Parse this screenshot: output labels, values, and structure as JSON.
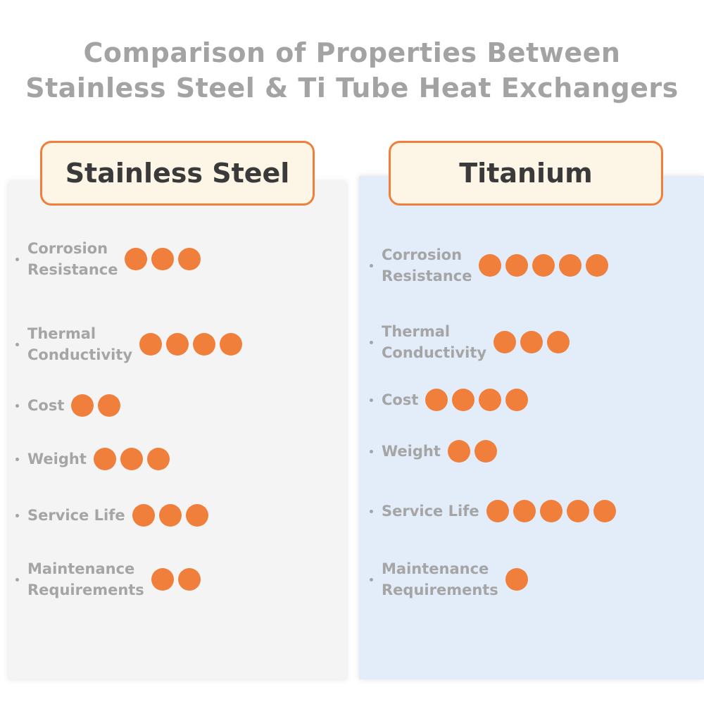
{
  "title": [
    "Comparison of Properties Between",
    "Stainless Steel & Ti Tube Heat Exchangers"
  ],
  "columns": [
    {
      "name": "Stainless Steel",
      "properties": [
        {
          "label": [
            "Corrosion",
            "Resistance"
          ],
          "rating": 3
        },
        {
          "label": [
            "Thermal",
            "Conductivity"
          ],
          "rating": 4
        },
        {
          "label": [
            "Cost"
          ],
          "rating": 2
        },
        {
          "label": [
            "Weight"
          ],
          "rating": 3
        },
        {
          "label": [
            "Service Life"
          ],
          "rating": 3
        },
        {
          "label": [
            "Maintenance",
            "Requirements"
          ],
          "rating": 2
        }
      ]
    },
    {
      "name": "Titanium",
      "properties": [
        {
          "label": [
            "Corrosion",
            "Resistance"
          ],
          "rating": 5
        },
        {
          "label": [
            "Thermal",
            "Conductivity"
          ],
          "rating": 3
        },
        {
          "label": [
            "Cost"
          ],
          "rating": 4
        },
        {
          "label": [
            "Weight"
          ],
          "rating": 2
        },
        {
          "label": [
            "Service Life"
          ],
          "rating": 5
        },
        {
          "label": [
            "Maintenance",
            "Requirements"
          ],
          "rating": 1
        }
      ]
    }
  ]
}
